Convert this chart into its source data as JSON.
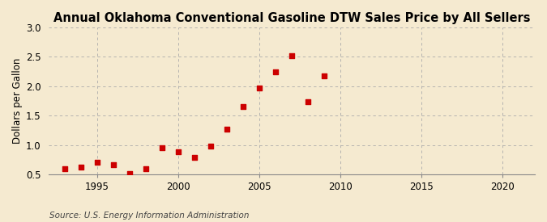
{
  "title": "Annual Oklahoma Conventional Gasoline DTW Sales Price by All Sellers",
  "ylabel": "Dollars per Gallon",
  "source": "Source: U.S. Energy Information Administration",
  "years": [
    1993,
    1994,
    1995,
    1996,
    1997,
    1998,
    1999,
    2000,
    2001,
    2002,
    2003,
    2004,
    2005,
    2006,
    2007,
    2008,
    2009
  ],
  "values": [
    0.6,
    0.62,
    0.7,
    0.67,
    0.52,
    0.6,
    0.95,
    0.88,
    0.79,
    0.98,
    1.27,
    1.65,
    1.97,
    2.24,
    2.52,
    1.73,
    2.18
  ],
  "marker_color": "#cc0000",
  "background_color": "#f5ead0",
  "grid_color": "#aaaaaa",
  "xlim": [
    1992,
    2022
  ],
  "ylim": [
    0.5,
    3.0
  ],
  "xticks": [
    1995,
    2000,
    2005,
    2010,
    2015,
    2020
  ],
  "yticks": [
    0.5,
    1.0,
    1.5,
    2.0,
    2.5,
    3.0
  ],
  "title_fontsize": 10.5,
  "label_fontsize": 8.5,
  "source_fontsize": 7.5
}
